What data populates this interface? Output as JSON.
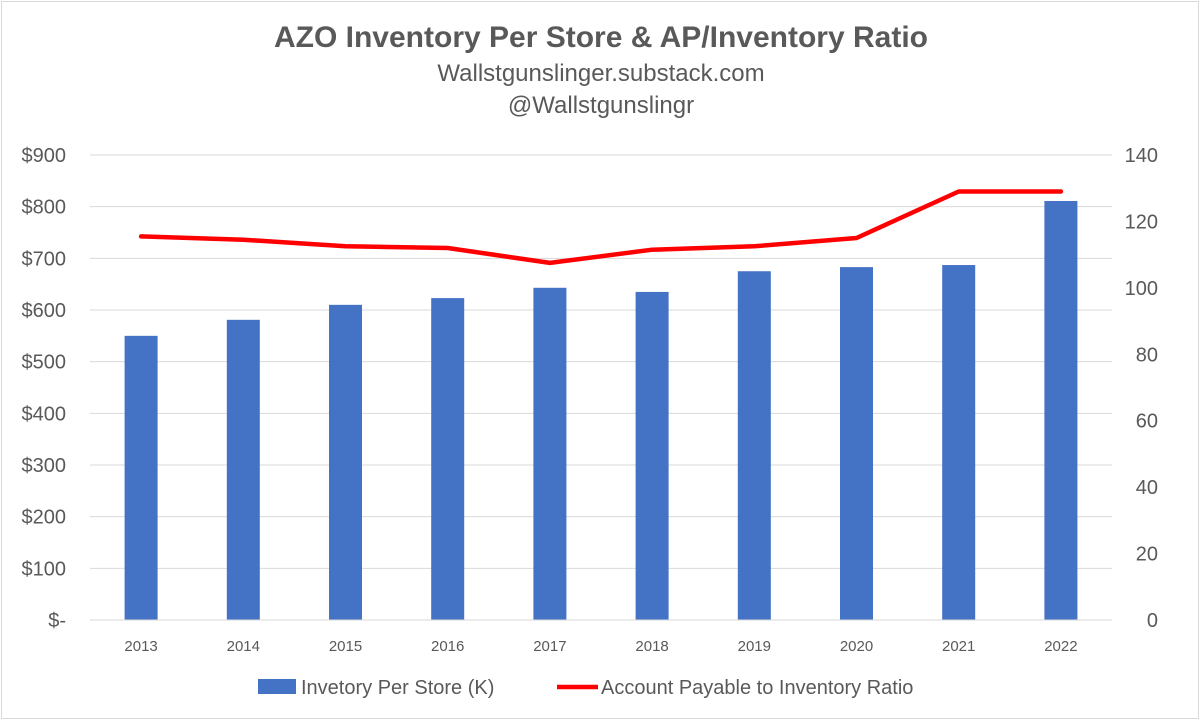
{
  "chart_data": {
    "type": "bar",
    "title": "AZO Inventory Per Store & AP/Inventory Ratio",
    "subtitle_lines": [
      "Wallstgunslinger.substack.com",
      "@Wallstgunslingr"
    ],
    "categories": [
      "2013",
      "2014",
      "2015",
      "2016",
      "2017",
      "2018",
      "2019",
      "2020",
      "2021",
      "2022"
    ],
    "series": [
      {
        "name": "Invetory Per Store (K)",
        "type": "bar",
        "axis": "left",
        "color": "#4472c4",
        "values": [
          550,
          581,
          610,
          623,
          643,
          635,
          675,
          683,
          687,
          811
        ]
      },
      {
        "name": "Account Payable to Inventory Ratio",
        "type": "line",
        "axis": "right",
        "color": "#ff0000",
        "values": [
          115.5,
          114.5,
          112.5,
          112,
          107.5,
          111.5,
          112.5,
          115,
          129,
          129
        ]
      }
    ],
    "y_left": {
      "ylim": [
        0,
        900
      ],
      "ticks": [
        0,
        100,
        200,
        300,
        400,
        500,
        600,
        700,
        800,
        900
      ],
      "tick_labels": [
        "$-",
        "$100",
        "$200",
        "$300",
        "$400",
        "$500",
        "$600",
        "$700",
        "$800",
        "$900"
      ]
    },
    "y_right": {
      "ylim": [
        0,
        140
      ],
      "ticks": [
        0,
        20,
        40,
        60,
        80,
        100,
        120,
        140
      ],
      "tick_labels": [
        "0",
        "20",
        "40",
        "60",
        "80",
        "100",
        "120",
        "140"
      ]
    },
    "grid": true,
    "legend_position": "bottom"
  }
}
